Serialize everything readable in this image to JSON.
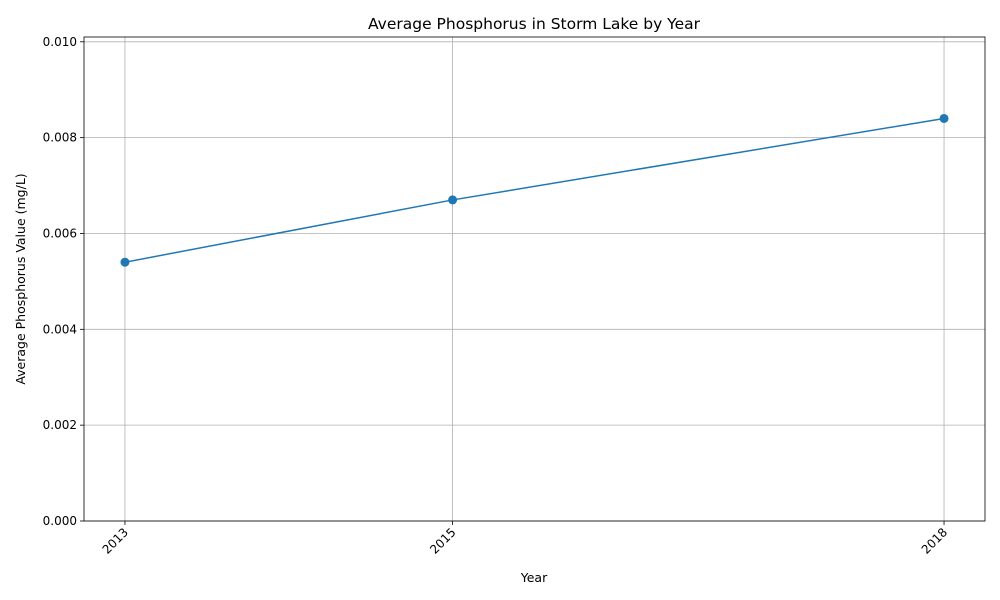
{
  "chart_data": {
    "type": "line",
    "title": "Average Phosphorus in Storm Lake by Year",
    "xlabel": "Year",
    "ylabel": "Average Phosphorus Value (mg/L)",
    "x": [
      2013,
      2015,
      2018
    ],
    "x_tick_labels": [
      "2013",
      "2015",
      "2018"
    ],
    "xlim": [
      2012.75,
      2018.25
    ],
    "ylim": [
      0,
      0.0101
    ],
    "y_ticks": [
      0,
      0.002,
      0.004,
      0.006,
      0.008,
      0.01
    ],
    "y_tick_labels": [
      "0.000",
      "0.002",
      "0.004",
      "0.006",
      "0.008",
      "0.010"
    ],
    "series": [
      {
        "values": [
          0.0054,
          0.0067,
          0.0084
        ],
        "color": "#1f77b4",
        "marker": "circle"
      }
    ],
    "grid": true,
    "legend": "none"
  }
}
